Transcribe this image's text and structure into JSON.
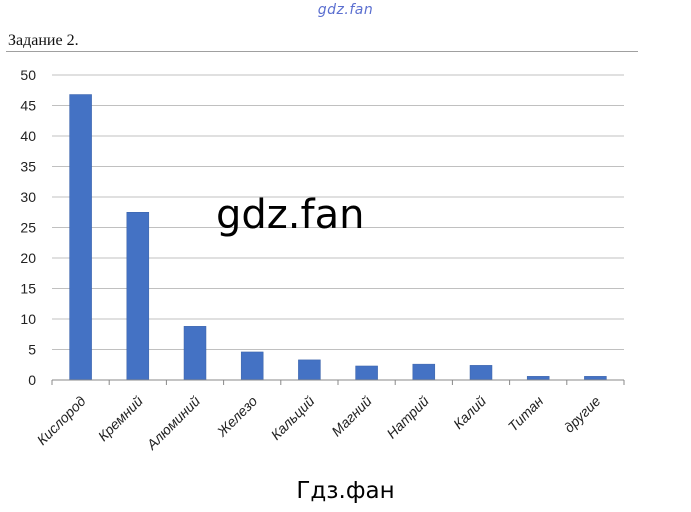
{
  "watermark_top": "gdz.fan",
  "task_title": "Задание 2.",
  "watermark_mid": "gdz.fan",
  "watermark_bottom": "Гдз.фан",
  "colors": {
    "bar": "#4472c4",
    "bar_edge": "#3a62a8",
    "grid": "#c0c0c0",
    "watermark_top": "#5b6fd0"
  },
  "chart_data": {
    "type": "bar",
    "title": "",
    "xlabel": "",
    "ylabel": "",
    "ylim": [
      0,
      50
    ],
    "yticks": [
      0,
      5,
      10,
      15,
      20,
      25,
      30,
      35,
      40,
      45,
      50
    ],
    "grid": true,
    "categories": [
      "Кислород",
      "Кремний",
      "Алюминий",
      "Железо",
      "Кальций",
      "Магний",
      "Натрий",
      "Калий",
      "Титан",
      "другие"
    ],
    "values": [
      46.8,
      27.5,
      8.8,
      4.6,
      3.3,
      2.3,
      2.6,
      2.4,
      0.6,
      0.6
    ]
  }
}
